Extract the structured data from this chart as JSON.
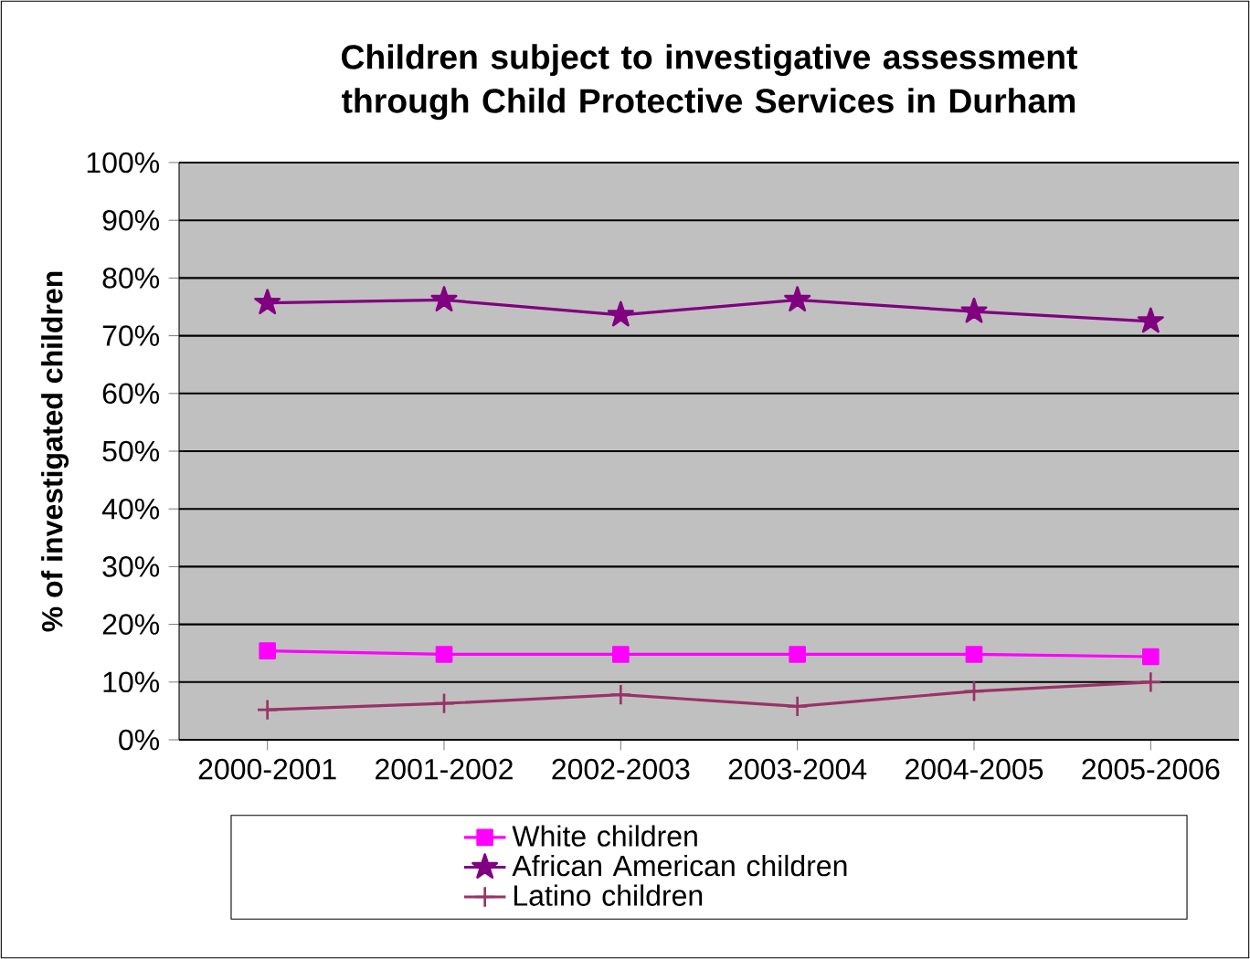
{
  "chart_data": {
    "type": "line",
    "title": "Children subject to investigative assessment through Child Protective Services in Durham",
    "ylabel": "% of investigated children",
    "categories": [
      "2000-2001",
      "2001-2002",
      "2002-2003",
      "2003-2004",
      "2004-2005",
      "2005-2006"
    ],
    "series": [
      {
        "name": "White children",
        "color": "#ff00ff",
        "marker": "square",
        "values": [
          15.4,
          14.8,
          14.8,
          14.8,
          14.8,
          14.4
        ]
      },
      {
        "name": "African American children",
        "color": "#800080",
        "marker": "star",
        "values": [
          75.7,
          76.2,
          73.6,
          76.2,
          74.2,
          72.5
        ]
      },
      {
        "name": "Latino children",
        "color": "#993366",
        "marker": "cross",
        "values": [
          5.2,
          6.3,
          7.8,
          5.8,
          8.4,
          10.0
        ]
      }
    ],
    "ylim": [
      0,
      100
    ],
    "yticks": [
      {
        "value": 0,
        "label": "0%"
      },
      {
        "value": 10,
        "label": "10%"
      },
      {
        "value": 20,
        "label": "20%"
      },
      {
        "value": 30,
        "label": "30%"
      },
      {
        "value": 40,
        "label": "40%"
      },
      {
        "value": 50,
        "label": "50%"
      },
      {
        "value": 60,
        "label": "60%"
      },
      {
        "value": 70,
        "label": "70%"
      },
      {
        "value": 80,
        "label": "80%"
      },
      {
        "value": 90,
        "label": "90%"
      },
      {
        "value": 100,
        "label": "100%"
      }
    ],
    "grid": "y",
    "legend": "bottom",
    "line_style": "solid"
  }
}
